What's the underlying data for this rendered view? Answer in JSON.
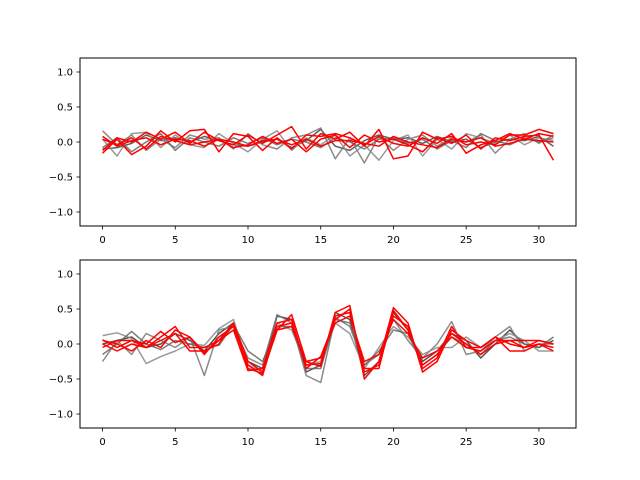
{
  "chart_data": [
    {
      "type": "line",
      "title": "",
      "xlabel": "",
      "ylabel": "",
      "xlim": [
        -1.55,
        32.55
      ],
      "ylim": [
        -1.2,
        1.2
      ],
      "xticks": [
        0,
        5,
        10,
        15,
        20,
        25,
        30
      ],
      "yticks": [
        -1.0,
        -0.5,
        0.0,
        0.5,
        1.0
      ],
      "ytick_labels": [
        "−1.0",
        "−0.5",
        "0.0",
        "0.5",
        "1.0"
      ],
      "grid": false,
      "x": [
        0,
        1,
        2,
        3,
        4,
        5,
        6,
        7,
        8,
        9,
        10,
        11,
        12,
        13,
        14,
        15,
        16,
        17,
        18,
        19,
        20,
        21,
        22,
        23,
        24,
        25,
        26,
        27,
        28,
        29,
        30,
        31
      ],
      "series": [
        {
          "color": "#444444",
          "values": [
            -0.1,
            -0.08,
            -0.02,
            0.1,
            0.02,
            0.06,
            0.0,
            0.08,
            0.02,
            -0.04,
            -0.06,
            0.0,
            0.04,
            -0.08,
            0.02,
            0.18,
            -0.06,
            -0.12,
            0.02,
            0.1,
            0.04,
            0.06,
            -0.02,
            0.08,
            0.0,
            0.04,
            -0.08,
            0.0,
            0.04,
            0.02,
            0.08,
            -0.06
          ]
        },
        {
          "color": "#777777",
          "values": [
            0.16,
            -0.04,
            0.1,
            -0.12,
            0.04,
            -0.08,
            0.1,
            0.04,
            0.06,
            -0.1,
            0.12,
            -0.04,
            -0.1,
            0.06,
            0.1,
            0.2,
            -0.24,
            0.06,
            -0.3,
            0.08,
            -0.12,
            0.04,
            0.1,
            -0.06,
            0.06,
            0.0,
            0.1,
            -0.16,
            0.04,
            0.12,
            -0.02,
            0.1
          ]
        },
        {
          "color": "#888888",
          "values": [
            0.04,
            -0.2,
            0.12,
            0.14,
            -0.08,
            0.1,
            -0.04,
            -0.08,
            0.12,
            -0.02,
            -0.14,
            0.04,
            0.16,
            -0.12,
            0.06,
            -0.04,
            0.1,
            -0.2,
            -0.04,
            -0.26,
            0.02,
            0.1,
            -0.2,
            0.04,
            -0.1,
            0.12,
            0.06,
            -0.02,
            0.1,
            -0.04,
            0.06,
            0.02
          ]
        },
        {
          "color": "#666666",
          "values": [
            -0.08,
            0.06,
            -0.14,
            0.0,
            0.12,
            -0.12,
            0.06,
            0.0,
            -0.06,
            0.06,
            -0.02,
            0.06,
            -0.04,
            0.04,
            0.0,
            -0.08,
            0.06,
            0.0,
            -0.1,
            0.04,
            0.06,
            -0.02,
            0.04,
            -0.1,
            0.02,
            -0.08,
            0.12,
            0.02,
            -0.04,
            0.06,
            0.0,
            0.06
          ]
        },
        {
          "color": "#ff0000",
          "values": [
            -0.12,
            0.06,
            0.0,
            0.14,
            0.04,
            0.14,
            -0.02,
            0.14,
            0.02,
            -0.04,
            0.1,
            -0.02,
            0.1,
            0.22,
            -0.1,
            0.12,
            0.04,
            0.14,
            -0.06,
            0.18,
            -0.24,
            -0.2,
            0.14,
            0.04,
            0.08,
            -0.04,
            0.0,
            -0.04,
            0.1,
            0.1,
            0.18,
            0.12
          ]
        },
        {
          "color": "#ff0000",
          "values": [
            -0.16,
            0.04,
            -0.18,
            -0.06,
            0.16,
            0.0,
            0.16,
            0.18,
            -0.14,
            0.12,
            0.08,
            -0.12,
            0.06,
            -0.1,
            0.1,
            0.08,
            0.12,
            0.06,
            -0.04,
            0.08,
            -0.02,
            -0.06,
            0.06,
            -0.02,
            0.12,
            -0.16,
            -0.04,
            0.02,
            0.12,
            0.04,
            0.02,
            0.0
          ]
        },
        {
          "color": "#ff0000",
          "values": [
            0.04,
            -0.04,
            0.06,
            -0.1,
            0.08,
            0.02,
            -0.04,
            0.0,
            0.04,
            -0.08,
            -0.04,
            0.08,
            -0.02,
            0.04,
            -0.14,
            0.04,
            0.1,
            -0.08,
            0.1,
            0.0,
            0.04,
            -0.04,
            -0.14,
            0.06,
            -0.02,
            0.1,
            -0.1,
            0.06,
            0.02,
            0.08,
            0.1,
            -0.26
          ]
        },
        {
          "color": "#ff0000",
          "values": [
            0.08,
            -0.06,
            0.02,
            0.06,
            -0.04,
            0.04,
            0.02,
            -0.06,
            0.04,
            0.0,
            -0.06,
            0.02,
            0.04,
            -0.04,
            0.04,
            -0.06,
            0.02,
            0.02,
            -0.02,
            -0.06,
            0.08,
            0.0,
            -0.04,
            -0.08,
            0.04,
            0.0,
            0.06,
            -0.06,
            -0.02,
            0.04,
            0.12,
            0.08
          ]
        }
      ]
    },
    {
      "type": "line",
      "title": "",
      "xlabel": "",
      "ylabel": "",
      "xlim": [
        -1.55,
        32.55
      ],
      "ylim": [
        -1.2,
        1.2
      ],
      "xticks": [
        0,
        5,
        10,
        15,
        20,
        25,
        30
      ],
      "yticks": [
        -1.0,
        -0.5,
        0.0,
        0.5,
        1.0
      ],
      "ytick_labels": [
        "−1.0",
        "−0.5",
        "0.0",
        "0.5",
        "1.0"
      ],
      "grid": false,
      "x": [
        0,
        1,
        2,
        3,
        4,
        5,
        6,
        7,
        8,
        9,
        10,
        11,
        12,
        13,
        14,
        15,
        16,
        17,
        18,
        19,
        20,
        21,
        22,
        23,
        24,
        25,
        26,
        27,
        28,
        29,
        30,
        31
      ],
      "series": [
        {
          "color": "#333333",
          "values": [
            0.0,
            0.05,
            0.1,
            -0.05,
            0.0,
            0.15,
            0.05,
            -0.1,
            0.15,
            0.3,
            -0.25,
            -0.35,
            0.4,
            0.35,
            -0.4,
            -0.3,
            0.45,
            0.35,
            -0.45,
            -0.25,
            0.45,
            0.2,
            -0.25,
            -0.1,
            0.15,
            0.05,
            -0.2,
            0.0,
            0.2,
            0.0,
            -0.05,
            0.05
          ]
        },
        {
          "color": "#777777",
          "values": [
            -0.25,
            0.05,
            -0.15,
            0.15,
            0.05,
            -0.05,
            0.1,
            -0.45,
            0.2,
            0.25,
            -0.2,
            -0.3,
            0.42,
            0.3,
            -0.45,
            -0.55,
            0.38,
            0.25,
            -0.3,
            -0.15,
            0.35,
            0.05,
            -0.2,
            0.0,
            0.32,
            -0.15,
            -0.1,
            0.1,
            0.25,
            -0.1,
            0.0,
            0.0
          ]
        },
        {
          "color": "#888888",
          "values": [
            0.12,
            0.16,
            0.08,
            -0.28,
            -0.18,
            -0.1,
            0.0,
            -0.02,
            0.22,
            0.35,
            -0.3,
            -0.4,
            0.3,
            0.2,
            -0.3,
            -0.25,
            0.3,
            0.15,
            -0.35,
            -0.05,
            0.25,
            0.1,
            -0.15,
            -0.05,
            -0.05,
            0.1,
            -0.05,
            0.05,
            0.15,
            0.05,
            -0.1,
            -0.1
          ]
        },
        {
          "color": "#666666",
          "values": [
            -0.15,
            0.0,
            0.18,
            0.0,
            -0.08,
            0.05,
            0.0,
            -0.05,
            -0.02,
            0.28,
            -0.1,
            -0.25,
            0.25,
            0.25,
            -0.35,
            -0.35,
            0.35,
            0.3,
            -0.3,
            -0.1,
            0.2,
            0.15,
            -0.3,
            -0.15,
            0.1,
            0.0,
            -0.15,
            0.05,
            0.1,
            0.0,
            -0.05,
            0.1
          ]
        },
        {
          "color": "#ff0000",
          "values": [
            0.06,
            -0.05,
            0.05,
            0.0,
            0.18,
            0.02,
            0.1,
            -0.12,
            0.05,
            0.3,
            -0.35,
            -0.42,
            0.2,
            0.42,
            -0.25,
            -0.32,
            0.45,
            0.55,
            -0.5,
            -0.25,
            0.52,
            0.3,
            -0.4,
            -0.25,
            0.2,
            0.05,
            -0.05,
            0.1,
            -0.1,
            -0.1,
            0.0,
            -0.1
          ]
        },
        {
          "color": "#ff0000",
          "values": [
            0.0,
            -0.1,
            0.0,
            -0.05,
            0.1,
            0.25,
            -0.05,
            -0.05,
            0.05,
            0.2,
            -0.38,
            -0.35,
            0.3,
            0.35,
            -0.35,
            -0.18,
            0.35,
            0.5,
            -0.4,
            -0.3,
            0.4,
            0.25,
            -0.35,
            -0.2,
            0.25,
            -0.05,
            -0.1,
            0.05,
            0.05,
            -0.05,
            0.0,
            -0.05
          ]
        },
        {
          "color": "#ff0000",
          "values": [
            0.05,
            0.0,
            -0.1,
            0.05,
            -0.05,
            0.2,
            0.1,
            -0.15,
            0.1,
            0.25,
            -0.3,
            -0.45,
            0.25,
            0.3,
            -0.3,
            -0.28,
            0.4,
            0.45,
            -0.35,
            -0.35,
            0.48,
            0.2,
            -0.3,
            -0.15,
            0.15,
            0.0,
            -0.15,
            0.0,
            0.05,
            0.05,
            0.05,
            0.0
          ]
        },
        {
          "color": "#ff0000",
          "values": [
            -0.05,
            0.05,
            0.05,
            -0.05,
            0.05,
            0.15,
            -0.1,
            -0.1,
            0.0,
            0.3,
            -0.25,
            -0.4,
            0.2,
            0.25,
            -0.25,
            -0.2,
            0.3,
            0.4,
            -0.25,
            -0.15,
            0.35,
            0.15,
            -0.2,
            -0.1,
            0.1,
            -0.05,
            -0.05,
            0.1,
            0.0,
            -0.05,
            0.05,
            0.0
          ]
        }
      ]
    }
  ]
}
